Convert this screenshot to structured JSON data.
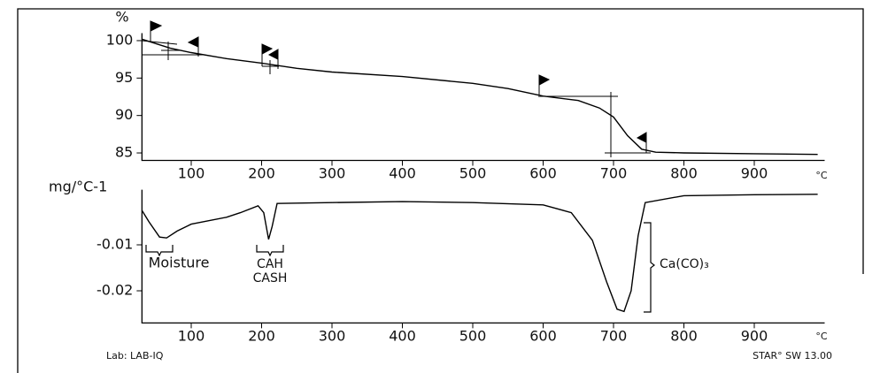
{
  "chart_data": [
    {
      "type": "line",
      "y_unit": "%",
      "x_unit": "°C",
      "x": [
        30,
        50,
        70,
        100,
        150,
        200,
        250,
        300,
        400,
        500,
        550,
        600,
        650,
        680,
        700,
        720,
        740,
        760,
        800,
        900,
        990
      ],
      "series": [
        {
          "color": "#000000",
          "values": [
            100.2,
            99.6,
            99.0,
            98.4,
            97.6,
            97.0,
            96.3,
            95.8,
            95.2,
            94.3,
            93.6,
            92.6,
            92.0,
            91.0,
            89.8,
            87.3,
            85.5,
            85.1,
            85.0,
            84.9,
            84.8
          ]
        }
      ],
      "xlim": [
        30,
        1000
      ],
      "xticks": [
        100,
        200,
        300,
        400,
        500,
        600,
        700,
        800,
        900
      ],
      "ylim": [
        84,
        101
      ],
      "yticks": [
        85,
        90,
        95,
        100
      ]
    },
    {
      "type": "line",
      "y_unit": "mg/°C-1",
      "x_unit": "°C",
      "x": [
        30,
        40,
        55,
        65,
        80,
        100,
        150,
        170,
        195,
        203,
        210,
        215,
        222,
        300,
        400,
        500,
        600,
        640,
        670,
        690,
        705,
        715,
        725,
        735,
        745,
        800,
        900,
        990
      ],
      "series": [
        {
          "color": "#000000",
          "values": [
            -0.0025,
            -0.005,
            -0.0083,
            -0.0085,
            -0.007,
            -0.0055,
            -0.004,
            -0.003,
            -0.0015,
            -0.003,
            -0.0088,
            -0.006,
            -0.001,
            -0.0008,
            -0.0006,
            -0.0008,
            -0.0013,
            -0.003,
            -0.009,
            -0.018,
            -0.024,
            -0.0245,
            -0.02,
            -0.008,
            -0.0008,
            0.0007,
            0.0009,
            0.001
          ]
        }
      ],
      "xlim": [
        30,
        1000
      ],
      "xticks": [
        100,
        200,
        300,
        400,
        500,
        600,
        700,
        800,
        900
      ],
      "ylim": [
        -0.027,
        0.002
      ],
      "yticks": [
        -0.01,
        -0.02
      ],
      "annotations": [
        "Moisture",
        "CAH",
        "CASH",
        "Ca(CO)₃"
      ]
    }
  ],
  "footer": {
    "lab": "Lab: LAB-IQ",
    "software": "STAR° SW 13.00"
  }
}
